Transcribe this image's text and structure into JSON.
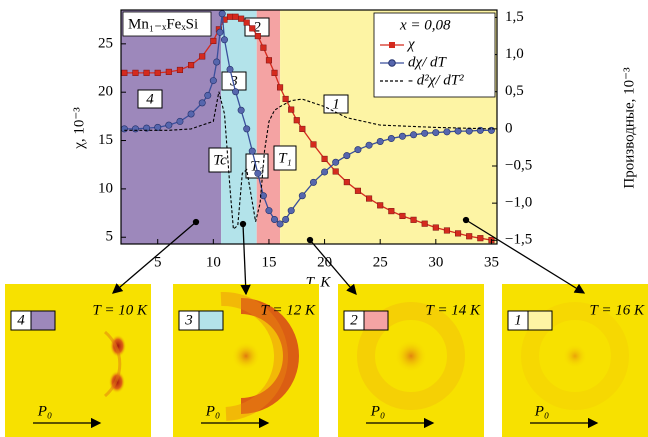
{
  "chart_data": {
    "type": "line",
    "xlabel": "T, K",
    "ylabel": "χ, 10⁻³",
    "y2label": "Производные, 10⁻³",
    "xlim": [
      1.7,
      35.5
    ],
    "xticks": [
      5,
      10,
      15,
      20,
      25,
      30,
      35
    ],
    "ylim": [
      4.3,
      28.5
    ],
    "yticks": [
      5,
      10,
      15,
      20,
      25
    ],
    "y2lim": [
      -1.55,
      1.6
    ],
    "y2ticks": [
      {
        "value": 1.5,
        "label": "1,5"
      },
      {
        "value": 1.0,
        "label": "1,0"
      },
      {
        "value": 0.5,
        "label": "0,5"
      },
      0,
      {
        "value": -0.5,
        "label": "−0,5"
      },
      {
        "value": -1.0,
        "label": "−1,0"
      },
      {
        "value": -1.5,
        "label": "−1,5"
      }
    ],
    "legend_title": "x = 0,08",
    "compound": "Mn₁₋ₓFeₓSi",
    "regions": [
      {
        "label": "4",
        "from": 1.7,
        "to": 10.7,
        "color": "#9d88bb"
      },
      {
        "label": "3",
        "from": 10.7,
        "to": 13.9,
        "color": "#b3e3ea"
      },
      {
        "label": "2",
        "from": 13.9,
        "to": 16,
        "color": "#f4a3a3"
      },
      {
        "label": "1",
        "from": 16,
        "to": 35.5,
        "color": "#fdf4a4"
      }
    ],
    "transitions": [
      "Tc",
      "T₂",
      "T₁"
    ],
    "series": [
      {
        "name": "χ",
        "color": "#d42a1e",
        "marker": "square",
        "x": [
          2,
          3,
          4,
          5,
          6,
          7,
          8,
          9,
          10,
          10.5,
          11,
          11.5,
          12,
          12.5,
          13,
          13.5,
          14,
          14.5,
          15,
          15.5,
          16,
          16.5,
          17,
          17.5,
          18,
          19,
          20,
          21,
          22,
          23,
          24,
          25,
          26,
          27,
          28,
          29,
          30,
          31,
          32,
          33,
          34,
          35
        ],
        "values": [
          22,
          22,
          22,
          22,
          22.1,
          22.3,
          22.8,
          23.7,
          25.3,
          26.5,
          27.5,
          27.8,
          27.8,
          27.6,
          27.2,
          26.6,
          25.8,
          24.6,
          23.3,
          22,
          20.5,
          19.3,
          18.2,
          17.1,
          16.2,
          14.6,
          13.1,
          11.8,
          10.7,
          9.8,
          9,
          8.3,
          7.7,
          7.2,
          6.8,
          6.4,
          6.0,
          5.7,
          5.4,
          5.1,
          4.9,
          4.7
        ]
      },
      {
        "name": "dχ/ dT",
        "color": "#3a4f9c",
        "marker": "circle",
        "axis": "y2",
        "x": [
          2,
          3,
          4,
          5,
          6,
          7,
          8,
          9,
          9.5,
          10,
          10.3,
          10.6,
          10.8,
          11,
          11.5,
          12,
          12.5,
          13,
          13.5,
          14,
          14.5,
          15,
          15.5,
          16,
          16.5,
          17,
          18,
          19,
          20,
          21,
          22,
          23,
          24,
          25,
          26,
          27,
          28,
          29,
          30,
          31,
          32,
          33,
          34,
          35
        ],
        "values": [
          0,
          0,
          0.01,
          0.02,
          0.05,
          0.1,
          0.2,
          0.35,
          0.45,
          0.65,
          0.9,
          1.3,
          1.55,
          1.2,
          0.8,
          0.5,
          0.25,
          0,
          -0.3,
          -0.6,
          -0.9,
          -1.1,
          -1.22,
          -1.28,
          -1.22,
          -1.1,
          -0.9,
          -0.72,
          -0.58,
          -0.45,
          -0.36,
          -0.28,
          -0.22,
          -0.17,
          -0.13,
          -0.1,
          -0.08,
          -0.06,
          -0.05,
          -0.04,
          -0.03,
          -0.03,
          -0.02,
          -0.02
        ]
      },
      {
        "name": "- d²χ/ dT²",
        "color": "#000000",
        "marker": "none",
        "dashed": true,
        "axis": "y2",
        "x": [
          2,
          4,
          6,
          8,
          9,
          10,
          10.5,
          11,
          11.5,
          11.8,
          12.2,
          12.6,
          13,
          13.4,
          13.8,
          14.2,
          14.6,
          15,
          15.5,
          16,
          17,
          18,
          19,
          20,
          22,
          25,
          30,
          35
        ],
        "values": [
          -0.02,
          -0.02,
          -0.02,
          0,
          0.05,
          0.1,
          0.5,
          0.2,
          -0.8,
          -1.35,
          -1.3,
          -0.6,
          -0.55,
          -0.9,
          -1.25,
          -1.0,
          -0.3,
          0.1,
          0.25,
          0.3,
          0.38,
          0.4,
          0.35,
          0.3,
          0.15,
          0.05,
          0.02,
          0
        ]
      }
    ]
  },
  "panels": [
    {
      "label": "4",
      "title": "T = 10 K",
      "vector": "P₀"
    },
    {
      "label": "3",
      "title": "T = 12 K",
      "vector": "P₀"
    },
    {
      "label": "2",
      "title": "T = 14 K",
      "vector": "P₀"
    },
    {
      "label": "1",
      "title": "T = 16 K",
      "vector": "P₀"
    }
  ]
}
